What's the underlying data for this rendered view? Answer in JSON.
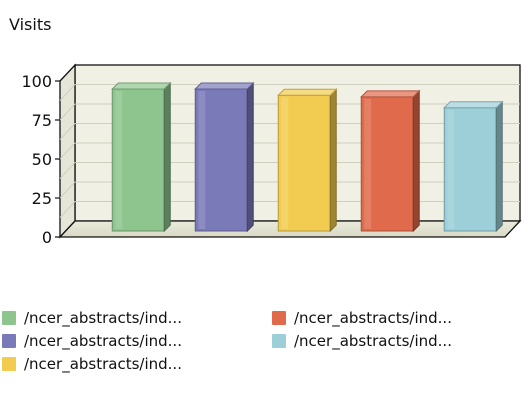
{
  "chart_data": {
    "type": "bar",
    "title": "Visits",
    "xlabel": "",
    "ylabel": "",
    "ylim": [
      0,
      100
    ],
    "yticks": [
      0,
      25,
      50,
      75,
      100
    ],
    "grid": true,
    "legend_position": "bottom",
    "categories": [
      "/ncer_abstracts/ind...",
      "/ncer_abstracts/ind...",
      "/ncer_abstracts/ind...",
      "/ncer_abstracts/ind...",
      "/ncer_abstracts/ind..."
    ],
    "values": [
      91,
      91,
      87,
      86,
      79
    ],
    "colors": [
      "#8ec48e",
      "#7a7ab8",
      "#f2cc50",
      "#e06a4c",
      "#9ccfd8"
    ]
  }
}
